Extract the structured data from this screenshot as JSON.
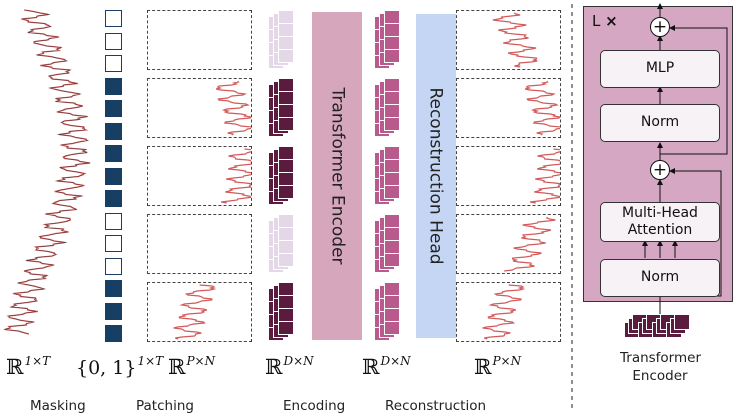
{
  "math_labels": {
    "masking": "R^{1×T}",
    "patching": "{0,1}^{1×T}",
    "patches": "R^{P×N}",
    "encoding": "R^{D×N}",
    "reconstruction": "R^{D×N}",
    "output": "R^{P×N}"
  },
  "stages": {
    "masking": "Masking",
    "patching": "Patching",
    "encoding": "Encoding",
    "reconstruction": "Reconstruction"
  },
  "blocks": {
    "encoder": "Transformer Encoder",
    "head": "Reconstruction Head"
  },
  "mask_pattern": [
    0,
    0,
    0,
    1,
    1,
    1,
    1,
    1,
    1,
    0,
    0,
    0,
    1,
    1,
    1
  ],
  "patch_visible": [
    false,
    true,
    true,
    false,
    true
  ],
  "encoder_detail": {
    "repeat_label": "L",
    "repeat_mark": "×",
    "mlp": "MLP",
    "norm_top": "Norm",
    "attention": "Multi-Head Attention",
    "norm_bottom": "Norm",
    "plus_symbol": "+",
    "caption": "Transformer Encoder"
  },
  "colors": {
    "mask_blue": "#173e63",
    "encoder_pink": "#d6a7bc",
    "head_blue": "#c4d6f3",
    "token_dark": "#5a1b3e",
    "token_light": "#e4d8e8",
    "token_recon": "#b85a8c",
    "panel_pink": "#d6a7c3",
    "signal_red": "#d35a5a"
  }
}
